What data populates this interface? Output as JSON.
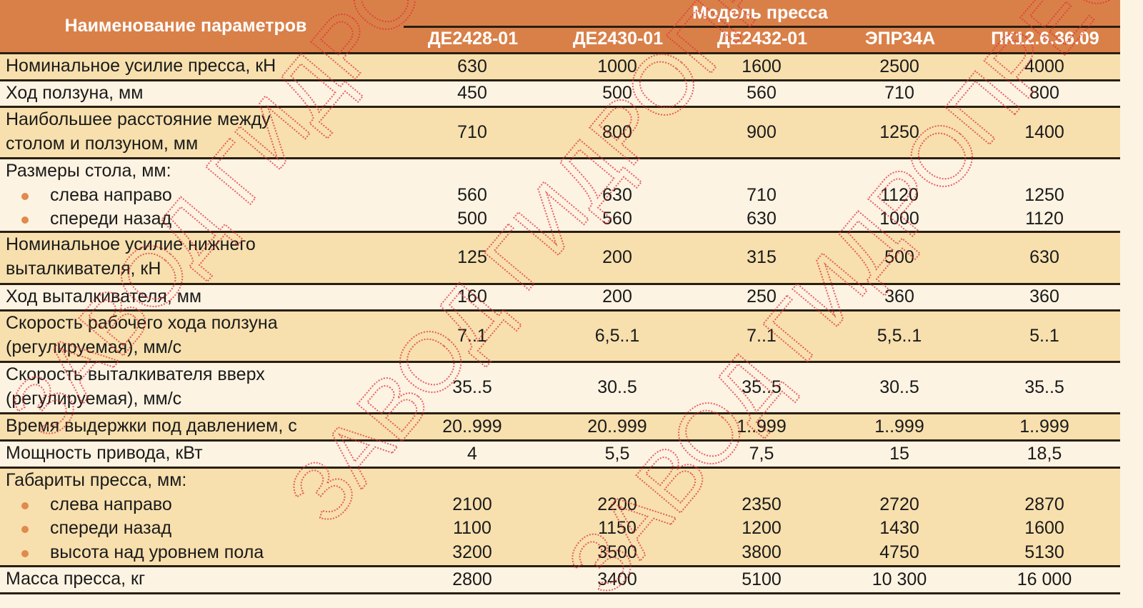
{
  "header": {
    "param_title": "Наименование параметров",
    "model_title": "Модель пресса",
    "models": [
      "ДЕ2428-01",
      "ДЕ2430-01",
      "ДЕ2432-01",
      "ЭПР34А",
      "ПК12.6.36.09"
    ]
  },
  "rows": [
    {
      "label": [
        "Номинальное усилие пресса, кН"
      ],
      "values": [
        "630",
        "1000",
        "1600",
        "2500",
        "4000"
      ]
    },
    {
      "label": [
        "Ход ползуна, мм"
      ],
      "values": [
        "450",
        "500",
        "560",
        "710",
        "800"
      ]
    },
    {
      "label": [
        "Наибольшее расстояние между",
        "столом и ползуном, мм"
      ],
      "values": [
        "710",
        "800",
        "900",
        "1250",
        "1400"
      ]
    },
    {
      "label": [
        "Размеры стола, мм:"
      ],
      "sub": [
        {
          "label": "слева направо",
          "values": [
            "560",
            "630",
            "710",
            "1120",
            "1250"
          ]
        },
        {
          "label": "спереди назад",
          "values": [
            "500",
            "560",
            "630",
            "1000",
            "1120"
          ]
        }
      ]
    },
    {
      "label": [
        "Номинальное усилие нижнего",
        "выталкивателя, кН"
      ],
      "values": [
        "125",
        "200",
        "315",
        "500",
        "630"
      ]
    },
    {
      "label": [
        "Ход выталкивателя, мм"
      ],
      "values": [
        "160",
        "200",
        "250",
        "360",
        "360"
      ]
    },
    {
      "label": [
        "Скорость рабочего хода ползуна",
        "(регулируемая), мм/с"
      ],
      "values": [
        "7..1",
        "6,5..1",
        "7..1",
        "5,5..1",
        "5..1"
      ]
    },
    {
      "label": [
        "Скорость выталкивателя вверх",
        "(регулируемая), мм/с"
      ],
      "values": [
        "35..5",
        "30..5",
        "35..5",
        "30..5",
        "35..5"
      ]
    },
    {
      "label": [
        "Время выдержки под давлением, с"
      ],
      "values": [
        "20..999",
        "20..999",
        "1..999",
        "1..999",
        "1..999"
      ]
    },
    {
      "label": [
        "Мощность привода, кВт"
      ],
      "values": [
        "4",
        "5,5",
        "7,5",
        "15",
        "18,5"
      ]
    },
    {
      "label": [
        "Габариты пресса, мм:"
      ],
      "sub": [
        {
          "label": "слева направо",
          "values": [
            "2100",
            "2200",
            "2350",
            "2720",
            "2870"
          ]
        },
        {
          "label": "спереди назад",
          "values": [
            "1100",
            "1150",
            "1200",
            "1430",
            "1600"
          ]
        },
        {
          "label": "высота над уровнем пола",
          "values": [
            "3200",
            "3500",
            "3800",
            "4750",
            "5130"
          ]
        }
      ]
    },
    {
      "label": [
        "Масса пресса, кг"
      ],
      "values": [
        "2800",
        "3400",
        "5100",
        "10 300",
        "16 000"
      ]
    }
  ],
  "watermark": "ЗАВОД ГИДРОПРЕСС",
  "colors": {
    "header": "#d98049",
    "row_dark": "#f7e0ae",
    "row_light": "#fdf3e2",
    "watermark": "#e0303a",
    "bullet": "#e08a4c"
  }
}
